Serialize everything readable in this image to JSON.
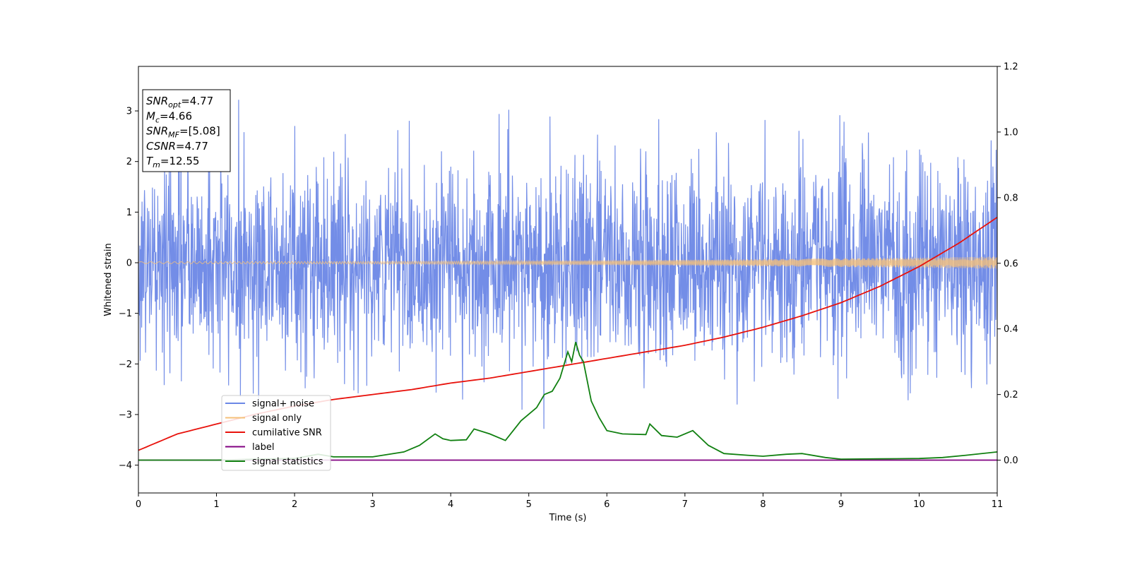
{
  "chart_data": {
    "type": "line",
    "title": "",
    "xlabel": "Time (s)",
    "ylabel": "Whitened strain",
    "ylabel_right": "",
    "xlim": [
      0,
      11
    ],
    "ylim": [
      -4.55,
      3.88
    ],
    "ylim_right": [
      -0.1,
      1.2
    ],
    "x_ticks": [
      0,
      1,
      2,
      3,
      4,
      5,
      6,
      7,
      8,
      9,
      10,
      11
    ],
    "y_ticks": [
      -4,
      -3,
      -2,
      -1,
      0,
      1,
      2,
      3
    ],
    "y_tick_labels": [
      "−4",
      "−3",
      "−2",
      "−1",
      "0",
      "1",
      "2",
      "3"
    ],
    "y_ticks_right": [
      0.0,
      0.2,
      0.4,
      0.6,
      0.8,
      1.0,
      1.2
    ],
    "y_tick_labels_right": [
      "0.0",
      "0.2",
      "0.4",
      "0.6",
      "0.8",
      "1.0",
      "1.2"
    ],
    "grid": false,
    "legend_position": "lower-left",
    "info_box": {
      "lines": [
        {
          "base": "SNR",
          "sub": "opt",
          "value": "=4.77"
        },
        {
          "base": "M",
          "sub": "c",
          "value": "=4.66"
        },
        {
          "base": "SNR",
          "sub": "MF",
          "value": "=[5.08]"
        },
        {
          "base": "CSNR",
          "sub": "",
          "value": "=4.77"
        },
        {
          "base": "T",
          "sub": "m",
          "value": "=12.55"
        }
      ]
    },
    "series": [
      {
        "name": "signal+ noise",
        "color": "#6b87e6",
        "axis": "left",
        "kind": "noise",
        "description_stats": {
          "mean": 0.0,
          "std": 1.0,
          "max": 3.5,
          "min": -4.15
        }
      },
      {
        "name": "signal only",
        "color": "#f5c07a",
        "axis": "left",
        "kind": "chirp",
        "amplitude_start": 0.02,
        "amplitude_end": 0.12
      },
      {
        "name": "cumilative SNR",
        "color": "#e8120c",
        "axis": "right",
        "x": [
          0,
          0.5,
          1,
          1.5,
          2,
          2.5,
          3,
          3.5,
          4,
          4.5,
          5,
          5.5,
          6,
          6.5,
          7,
          7.5,
          8,
          8.5,
          9,
          9.5,
          10,
          10.5,
          11
        ],
        "y": [
          0.03,
          0.08,
          0.11,
          0.14,
          0.165,
          0.185,
          0.2,
          0.215,
          0.235,
          0.25,
          0.27,
          0.29,
          0.31,
          0.33,
          0.35,
          0.375,
          0.405,
          0.44,
          0.48,
          0.53,
          0.59,
          0.66,
          0.74
        ]
      },
      {
        "name": "label",
        "color": "#800080",
        "axis": "right",
        "x": [
          0,
          11
        ],
        "y": [
          0.0,
          0.0
        ]
      },
      {
        "name": "signal statistics",
        "color": "#118011",
        "axis": "right",
        "x": [
          0,
          0.5,
          1,
          1.5,
          2,
          2.3,
          2.5,
          3,
          3.4,
          3.6,
          3.8,
          3.9,
          4,
          4.2,
          4.3,
          4.5,
          4.7,
          4.9,
          5.1,
          5.2,
          5.3,
          5.4,
          5.5,
          5.55,
          5.6,
          5.65,
          5.7,
          5.8,
          5.9,
          6,
          6.2,
          6.5,
          6.55,
          6.7,
          6.9,
          7.1,
          7.3,
          7.5,
          7.8,
          8,
          8.3,
          8.5,
          8.8,
          9,
          9.5,
          10,
          10.3,
          10.6,
          11
        ],
        "y": [
          0.0,
          0.0,
          0.0,
          0.003,
          0.005,
          0.018,
          0.01,
          0.01,
          0.025,
          0.045,
          0.08,
          0.065,
          0.06,
          0.062,
          0.095,
          0.08,
          0.06,
          0.12,
          0.16,
          0.2,
          0.21,
          0.25,
          0.33,
          0.3,
          0.36,
          0.32,
          0.3,
          0.18,
          0.13,
          0.09,
          0.08,
          0.078,
          0.11,
          0.075,
          0.07,
          0.09,
          0.045,
          0.02,
          0.015,
          0.012,
          0.018,
          0.02,
          0.008,
          0.003,
          0.004,
          0.005,
          0.008,
          0.015,
          0.025
        ]
      }
    ]
  }
}
